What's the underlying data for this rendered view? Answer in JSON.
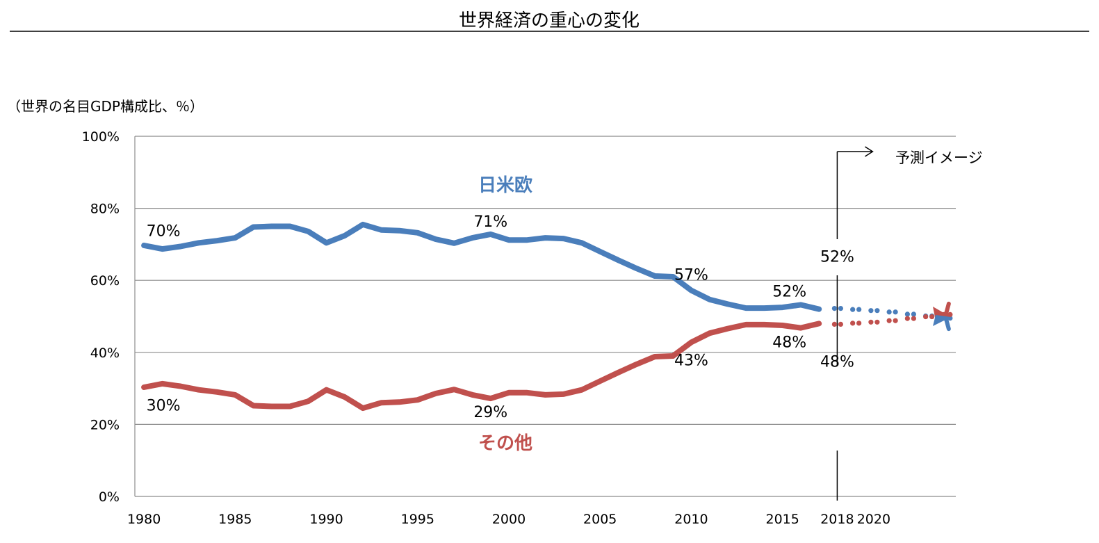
{
  "chart_data": {
    "type": "line",
    "title": "世界経済の重心の変化",
    "unit_label": "（世界の名目GDP構成比、％）",
    "ylim": [
      0,
      100
    ],
    "y_ticks": [
      0,
      20,
      40,
      60,
      80,
      100
    ],
    "y_tick_labels": [
      "0%",
      "20%",
      "40%",
      "60%",
      "80%",
      "100%"
    ],
    "xlim": [
      1979.5,
      2024.5
    ],
    "x_ticks": [
      1980,
      1985,
      1990,
      1995,
      2000,
      2005,
      2010,
      2015,
      2018,
      2020
    ],
    "x_tick_labels": [
      "1980",
      "1985",
      "1990",
      "1995",
      "2000",
      "2005",
      "2010",
      "2015",
      "2018",
      "2020"
    ],
    "grid": true,
    "colors": {
      "blue": "#4a7ebb",
      "red": "#c0504d"
    },
    "series": [
      {
        "name": "日米欧",
        "color": "#4a7ebb",
        "x": [
          1980,
          1981,
          1982,
          1983,
          1984,
          1985,
          1986,
          1987,
          1988,
          1989,
          1990,
          1991,
          1992,
          1993,
          1994,
          1995,
          1996,
          1997,
          1998,
          1999,
          2000,
          2001,
          2002,
          2003,
          2004,
          2005,
          2006,
          2007,
          2008,
          2009,
          2010,
          2011,
          2012,
          2013,
          2014,
          2015,
          2016,
          2017
        ],
        "values": [
          69.7,
          68.7,
          69.4,
          70.4,
          71.0,
          71.8,
          74.8,
          75.0,
          75.0,
          73.6,
          70.4,
          72.4,
          75.5,
          74.0,
          73.8,
          73.2,
          71.4,
          70.3,
          71.8,
          72.8,
          71.2,
          71.2,
          71.8,
          71.6,
          70.4,
          68.0,
          65.6,
          63.3,
          61.2,
          61.0,
          57.2,
          54.7,
          53.4,
          52.3,
          52.3,
          52.5,
          53.2,
          52.0
        ],
        "projection": {
          "x": [
            2018,
            2019,
            2020,
            2021,
            2022,
            2023,
            2024
          ],
          "values": [
            52.2,
            51.9,
            51.6,
            51.2,
            50.6,
            50.1,
            49.5
          ]
        },
        "arrow_end": 46.5
      },
      {
        "name": "その他",
        "color": "#c0504d",
        "x": [
          1980,
          1981,
          1982,
          1983,
          1984,
          1985,
          1986,
          1987,
          1988,
          1989,
          1990,
          1991,
          1992,
          1993,
          1994,
          1995,
          1996,
          1997,
          1998,
          1999,
          2000,
          2001,
          2002,
          2003,
          2004,
          2005,
          2006,
          2007,
          2008,
          2009,
          2010,
          2011,
          2012,
          2013,
          2014,
          2015,
          2016,
          2017
        ],
        "values": [
          30.3,
          31.3,
          30.6,
          29.6,
          29.0,
          28.2,
          25.2,
          25.0,
          25.0,
          26.4,
          29.6,
          27.6,
          24.5,
          26.0,
          26.2,
          26.8,
          28.6,
          29.7,
          28.2,
          27.2,
          28.8,
          28.8,
          28.2,
          28.4,
          29.6,
          32.0,
          34.4,
          36.7,
          38.8,
          39.0,
          42.8,
          45.3,
          46.6,
          47.7,
          47.7,
          47.5,
          46.8,
          48.0
        ],
        "projection": {
          "x": [
            2018,
            2019,
            2020,
            2021,
            2022,
            2023,
            2024
          ],
          "values": [
            47.8,
            48.1,
            48.4,
            48.8,
            49.4,
            49.9,
            50.5
          ]
        },
        "arrow_end": 53.5
      }
    ],
    "annotations": [
      {
        "text": "70%",
        "x": 1980,
        "y": 70,
        "series": "日米欧"
      },
      {
        "text": "71%",
        "x": 1999,
        "y": 71,
        "series": "日米欧"
      },
      {
        "text": "57%",
        "x": 2010,
        "y": 57,
        "series": "日米欧"
      },
      {
        "text": "52%",
        "x": 2015,
        "y": 52,
        "series": "日米欧"
      },
      {
        "text": "52%",
        "x": 2018,
        "y": 52,
        "series": "日米欧"
      },
      {
        "text": "30%",
        "x": 1980,
        "y": 30,
        "series": "その他"
      },
      {
        "text": "29%",
        "x": 1999,
        "y": 29,
        "series": "その他"
      },
      {
        "text": "43%",
        "x": 2010,
        "y": 43,
        "series": "その他"
      },
      {
        "text": "48%",
        "x": 2015,
        "y": 48,
        "series": "その他"
      },
      {
        "text": "48%",
        "x": 2018,
        "y": 48,
        "series": "その他"
      }
    ],
    "projection_marker": {
      "x": 2018,
      "label": "予測イメージ"
    }
  }
}
